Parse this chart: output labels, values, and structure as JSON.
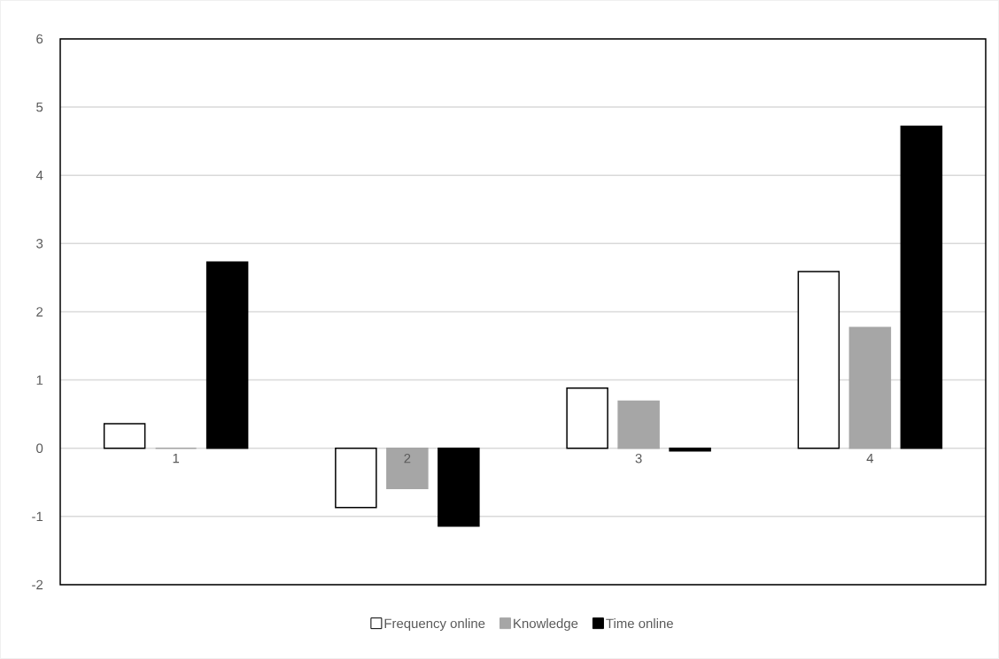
{
  "chart_data": {
    "type": "bar",
    "categories": [
      "1",
      "2",
      "3",
      "4"
    ],
    "series": [
      {
        "name": "Frequency online",
        "color": "#ffffff",
        "values": [
          0.36,
          -0.87,
          0.88,
          2.59
        ]
      },
      {
        "name": "Knowledge",
        "color": "#a6a6a6",
        "values": [
          0,
          -0.59,
          0.69,
          1.77
        ]
      },
      {
        "name": "Time online",
        "color": "#000000",
        "values": [
          2.73,
          -1.14,
          -0.04,
          4.72
        ]
      }
    ],
    "ylim": [
      -2,
      6
    ],
    "yticks": [
      -2,
      -1,
      0,
      1,
      2,
      3,
      4,
      5,
      6
    ],
    "grid": "y",
    "legend": "bottom"
  }
}
